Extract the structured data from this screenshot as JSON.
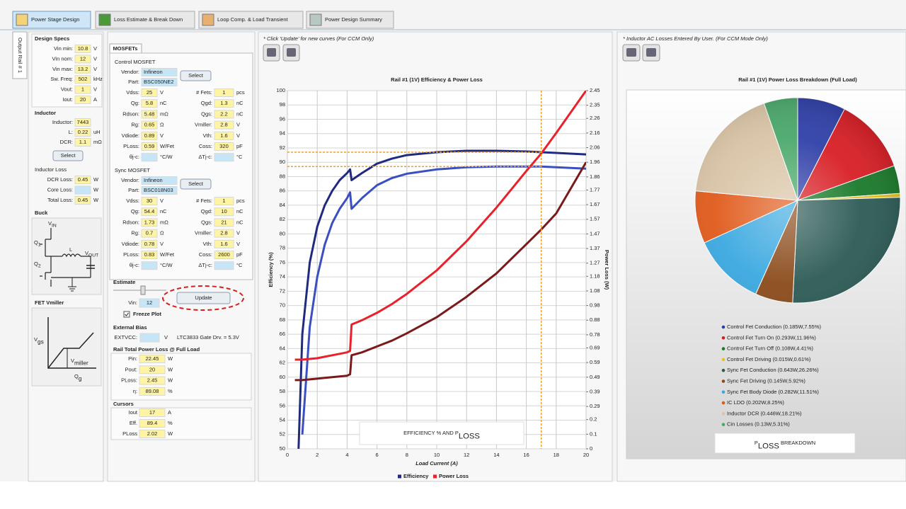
{
  "tabs": [
    "Power Stage Design",
    "Loss Estimate & Break Down",
    "Loop Comp. & Load Transient",
    "Power Design Summary"
  ],
  "side_tab": "Output Rail # 1",
  "design_specs": {
    "title": "Design Specs",
    "rows": [
      {
        "label": "Vin min:",
        "value": "10.8",
        "unit": "V"
      },
      {
        "label": "Vin nom:",
        "value": "12",
        "unit": "V"
      },
      {
        "label": "Vin max:",
        "value": "13.2",
        "unit": "V"
      },
      {
        "label": "Sw. Freq:",
        "value": "502",
        "unit": "kHz"
      },
      {
        "label": "Vout:",
        "value": "1",
        "unit": "V"
      },
      {
        "label": "Iout:",
        "value": "20",
        "unit": "A"
      }
    ]
  },
  "inductor": {
    "title": "Inductor",
    "button": "Select",
    "rows": [
      {
        "label": "Inductor:",
        "value": "7443"
      },
      {
        "label": "L:",
        "value": "0.22",
        "unit": "uH"
      },
      {
        "label": "DCR:",
        "value": "1.1",
        "unit": "mΩ"
      }
    ]
  },
  "inductor_loss": {
    "title": "Inductor Loss",
    "rows": [
      {
        "label": "DCR Loss:",
        "value": "0.45",
        "unit": "W"
      },
      {
        "label": "Core Loss:",
        "unit": "W"
      },
      {
        "label": "Total Loss:",
        "value": "0.45",
        "unit": "W"
      }
    ]
  },
  "buck": {
    "title": "Buck",
    "labels": [
      {
        "text": "V",
        "sub": "IN"
      },
      {
        "text": "Q",
        "sub": "1"
      },
      {
        "text": "L"
      },
      {
        "text": "V",
        "sub": "OUT"
      },
      {
        "text": "Q",
        "sub": "2"
      }
    ]
  },
  "fet_vmiller": {
    "title": "FET Vmiller",
    "labels": [
      {
        "text": "V",
        "sub": "gs"
      },
      {
        "text": "V",
        "sub": "miller"
      },
      {
        "text": "Q",
        "sub": "g"
      }
    ]
  },
  "mosfets": {
    "tab": "MOSFETs",
    "control": {
      "title": "Control MOSFET",
      "vendor_label": "Vendor:",
      "vendor": "Infineon",
      "part_label": "Part:",
      "part": "BSC050NE2",
      "button": "Select",
      "rows": [
        [
          {
            "label": "Vdss:",
            "value": "25",
            "unit": "V"
          },
          {
            "label": "# Fets:",
            "value": "1",
            "unit": "pcs"
          }
        ],
        [
          {
            "label": "Qg:",
            "value": "5.8",
            "unit": "nC"
          },
          {
            "label": "Qgd:",
            "value": "1.3",
            "unit": "nC"
          }
        ],
        [
          {
            "label": "Rdson:",
            "value": "5.48",
            "unit": "mΩ"
          },
          {
            "label": "Qgs:",
            "value": "2.2",
            "unit": "nC"
          }
        ],
        [
          {
            "label": "Rg:",
            "value": "0.65",
            "unit": "Ω"
          },
          {
            "label": "Vmiller:",
            "value": "2.8",
            "unit": "V"
          }
        ],
        [
          {
            "label": "Vdiode:",
            "value": "0.89",
            "unit": "V"
          },
          {
            "label": "Vth:",
            "value": "1.6",
            "unit": "V"
          }
        ],
        [
          {
            "label": "PLoss:",
            "value": "0.59",
            "unit": "W/Fet"
          },
          {
            "label": "Coss:",
            "value": "320",
            "unit": "pF"
          }
        ],
        [
          {
            "label": "θj-c:",
            "unit": "°C/W"
          },
          {
            "label": "ΔTj-c:",
            "unit": "°C"
          }
        ]
      ]
    },
    "sync": {
      "title": "Sync MOSFET",
      "vendor_label": "Vendor:",
      "vendor": "Infineon",
      "part_label": "Part:",
      "part": "BSC018N03",
      "button": "Select",
      "rows": [
        [
          {
            "label": "Vdss:",
            "value": "30",
            "unit": "V"
          },
          {
            "label": "# Fets:",
            "value": "1",
            "unit": "pcs"
          }
        ],
        [
          {
            "label": "Qg:",
            "value": "54.4",
            "unit": "nC"
          },
          {
            "label": "Qgd:",
            "value": "10",
            "unit": "nC"
          }
        ],
        [
          {
            "label": "Rdson:",
            "value": "1.73",
            "unit": "mΩ"
          },
          {
            "label": "Qgs:",
            "value": "21",
            "unit": "nC"
          }
        ],
        [
          {
            "label": "Rg:",
            "value": "0.7",
            "unit": "Ω"
          },
          {
            "label": "Vmiller:",
            "value": "2.8",
            "unit": "V"
          }
        ],
        [
          {
            "label": "Vdiode:",
            "value": "0.78",
            "unit": "V"
          },
          {
            "label": "Vth:",
            "value": "1.6",
            "unit": "V"
          }
        ],
        [
          {
            "label": "PLoss:",
            "value": "0.83",
            "unit": "W/Fet"
          },
          {
            "label": "Coss:",
            "value": "2600",
            "unit": "pF"
          }
        ],
        [
          {
            "label": "θj-c:",
            "unit": "°C/W"
          },
          {
            "label": "ΔTj-c:",
            "unit": "°C"
          }
        ]
      ]
    }
  },
  "estimate": {
    "title": "Estimate",
    "vin_label": "Vin:",
    "vin": "12",
    "checkbox": "Freeze Plot",
    "button": "Update"
  },
  "external_bias": {
    "title": "External Bias",
    "label": "EXTVCC:",
    "unit": "V",
    "note": "LTC3833 Gate Drv. = 5.3V"
  },
  "rail_total": {
    "title": "Rail Total Power Loss @ Full Load",
    "rows": [
      {
        "label": "Pin:",
        "value": "22.45",
        "unit": "W"
      },
      {
        "label": "Pout:",
        "value": "20",
        "unit": "W"
      },
      {
        "label": "PLoss:",
        "value": "2.45",
        "unit": "W"
      },
      {
        "label": "η:",
        "value": "89.08",
        "unit": "%"
      }
    ]
  },
  "cursors": {
    "title": "Cursors",
    "rows": [
      {
        "label": "Iout",
        "value": "17",
        "unit": "A"
      },
      {
        "label": "Eff.",
        "value": "89.4",
        "unit": "%"
      },
      {
        "label": "PLoss",
        "value": "2.02",
        "unit": "W"
      }
    ]
  },
  "chart_data": [
    {
      "type": "line",
      "note": "* Click 'Update' for new curves (For CCM Only)",
      "title": "Rail #1 (1V) Efficiency & Power Loss",
      "xlabel": "Load Current (A)",
      "ylabel": "Efficiency (%)",
      "y2label": "Power Loss (W)",
      "x": [
        0.5,
        0.75,
        1,
        1.5,
        2,
        2.5,
        3,
        3.5,
        4,
        4.2,
        4.3,
        5,
        6,
        7,
        8,
        10,
        12,
        14,
        16,
        17,
        18,
        20
      ],
      "xlim": [
        0,
        20
      ],
      "xticks": [
        0,
        2,
        4,
        6,
        8,
        10,
        12,
        14,
        16,
        18,
        20
      ],
      "ylim": [
        50,
        100
      ],
      "yticks": [
        50,
        52,
        54,
        56,
        58,
        60,
        62,
        64,
        66,
        68,
        70,
        72,
        74,
        76,
        78,
        80,
        82,
        84,
        86,
        88,
        90,
        92,
        94,
        96,
        98,
        100
      ],
      "y2lim": [
        0,
        2.45
      ],
      "y2ticks": [
        0,
        0.1,
        0.2,
        0.29,
        0.39,
        0.49,
        0.59,
        0.69,
        0.78,
        0.88,
        0.98,
        1.08,
        1.18,
        1.27,
        1.37,
        1.47,
        1.57,
        1.67,
        1.77,
        1.86,
        1.96,
        2.06,
        2.16,
        2.26,
        2.35,
        2.45
      ],
      "grid": true,
      "legend": "bottom",
      "series": [
        {
          "name": "Efficiency",
          "color": "#1f2a80",
          "values": [
            null,
            50,
            66,
            76,
            81,
            84,
            86,
            87.5,
            88.5,
            89,
            87.5,
            88.5,
            89.8,
            90.5,
            91,
            91.4,
            91.6,
            91.6,
            91.5,
            91.4,
            91.3,
            91.1
          ]
        },
        {
          "color": "#3a4fc0",
          "values": [
            null,
            null,
            52,
            67,
            74,
            78.5,
            81.5,
            83.5,
            85,
            85.8,
            83.5,
            85,
            86.8,
            87.8,
            88.4,
            89,
            89.3,
            89.4,
            89.4,
            89.4,
            89.3,
            89.1
          ]
        },
        {
          "name": "Power Loss",
          "color": "#e8212a",
          "axis": "y2",
          "values": [
            0.61,
            0.61,
            0.61,
            0.615,
            0.62,
            0.63,
            0.64,
            0.65,
            0.66,
            0.67,
            0.85,
            0.88,
            0.93,
            0.99,
            1.06,
            1.22,
            1.42,
            1.65,
            1.9,
            2.02,
            2.16,
            2.45
          ]
        },
        {
          "color": "#7a1a1a",
          "axis": "y2",
          "values": [
            0.47,
            0.47,
            0.47,
            0.475,
            0.48,
            0.485,
            0.49,
            0.495,
            0.5,
            0.51,
            0.64,
            0.66,
            0.7,
            0.74,
            0.79,
            0.9,
            1.04,
            1.2,
            1.4,
            1.5,
            1.61,
            1.96
          ]
        }
      ],
      "cursor": {
        "x": 17,
        "y": [
          91.4,
          89.4
        ],
        "color": "#f0a020"
      },
      "annotation": {
        "text": "EFFICIENCY % AND P",
        "sub": "LOSS"
      }
    },
    {
      "type": "pie",
      "note": "* Inductor AC Losses Entered By User. (For CCM Mode Only)",
      "title": "Rail #1 (1V) Power Loss Breakdown (Full Load)",
      "categories": [
        "Control Fet Conduction (0.185W,7.55%)",
        "Control Fet Turn On (0.293W,11.96%)",
        "Control Fet Turn Off (0.108W,4.41%)",
        "Control Fet Driving (0.015W,0.61%)",
        "Sync Fet Conduction (0.643W,26.26%)",
        "Sync Fet Driving (0.145W,5.92%)",
        "Sync Fet Body Diode (0.282W,11.51%)",
        "IC LDO (0.202W,8.25%)",
        "Inductor DCR (0.446W,18.21%)",
        "Cin Losses (0.13W,5.31%)"
      ],
      "values": [
        7.55,
        11.96,
        4.41,
        0.61,
        26.26,
        5.92,
        11.51,
        8.25,
        18.21,
        5.31
      ],
      "colors": [
        "#2f3fa8",
        "#d81e25",
        "#1a7a2a",
        "#e8c020",
        "#2c5a55",
        "#8a4a1a",
        "#3aa8e0",
        "#e05a1a",
        "#d9c4a6",
        "#4aa86a"
      ],
      "legend": "bottom",
      "annotation": {
        "text": "P",
        "sub": "LOSS",
        "text2": " BREAKDOWN"
      }
    }
  ]
}
